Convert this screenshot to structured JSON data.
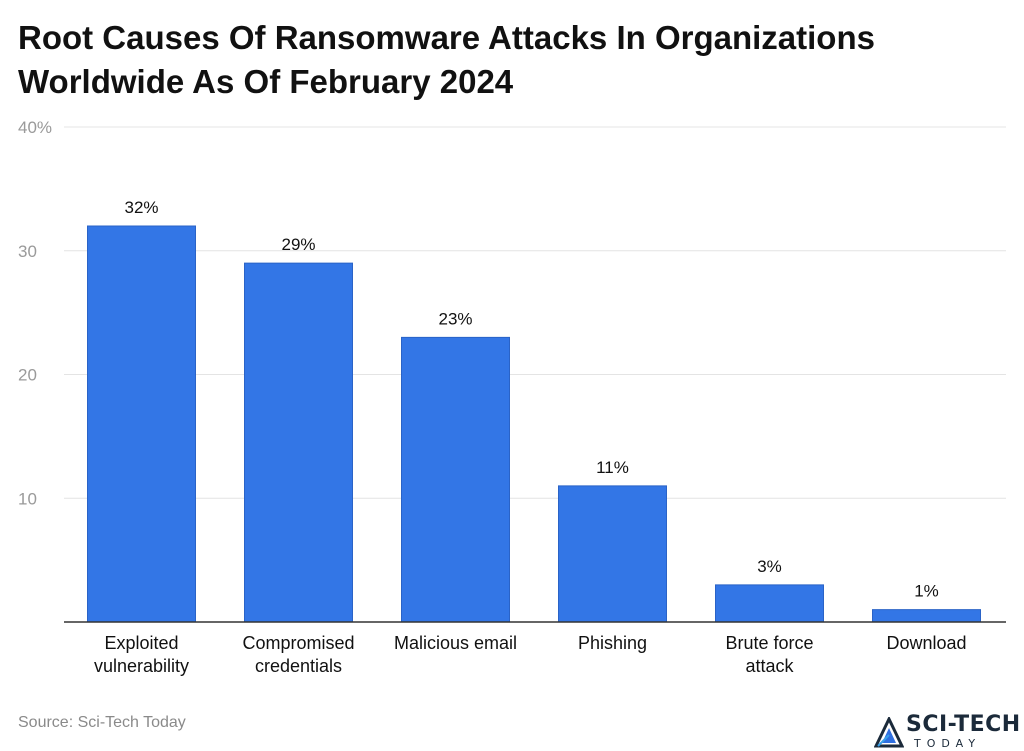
{
  "chart_data": {
    "type": "bar",
    "title": "Root Causes Of Ransomware Attacks In Organizations Worldwide As Of February 2024",
    "xlabel": "",
    "ylabel": "",
    "categories": [
      [
        "Exploited",
        "vulnerability"
      ],
      [
        "Compromised",
        "credentials"
      ],
      [
        "Malicious email"
      ],
      [
        "Phishing"
      ],
      [
        "Brute force",
        "attack"
      ],
      [
        "Download"
      ]
    ],
    "values": [
      32,
      29,
      23,
      11,
      3,
      1
    ],
    "data_labels": [
      "32%",
      "29%",
      "23%",
      "11%",
      "3%",
      "1%"
    ],
    "ylim": [
      0,
      40
    ],
    "yticks": [
      {
        "value": 10,
        "label": "10"
      },
      {
        "value": 20,
        "label": "20"
      },
      {
        "value": 30,
        "label": "30"
      },
      {
        "value": 40,
        "label": "40%"
      }
    ],
    "grid": true,
    "colors": {
      "bar": "#3376E6",
      "bar_edge": "#2A63C7",
      "grid": "#e4e4e4",
      "axis": "#333333"
    }
  },
  "source": "Source: Sci-Tech Today",
  "logo": {
    "name": "SCI-TECH",
    "tagline": "TODAY"
  }
}
